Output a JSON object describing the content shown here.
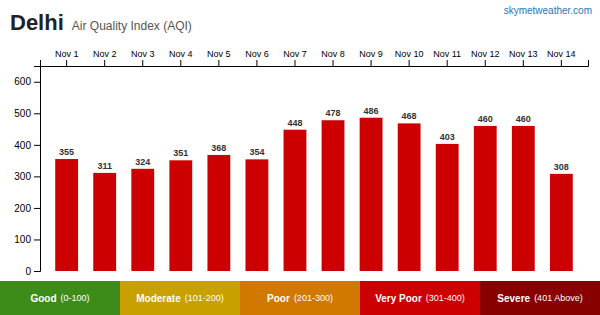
{
  "chart_data": {
    "type": "bar",
    "title": "Delhi",
    "subtitle": "Air Quality Index (AQI)",
    "source": "skymetweather.com",
    "categories": [
      "Nov 1",
      "Nov 2",
      "Nov 3",
      "Nov 4",
      "Nov 5",
      "Nov 6",
      "Nov 7",
      "Nov 8",
      "Nov 9",
      "Nov 10",
      "Nov 11",
      "Nov 12",
      "Nov 13",
      "Nov 14"
    ],
    "values": [
      355,
      311,
      324,
      351,
      368,
      354,
      448,
      478,
      486,
      468,
      403,
      460,
      460,
      308
    ],
    "color": "#cc0000",
    "ylim": [
      0,
      650
    ],
    "yticks": [
      0,
      100,
      200,
      300,
      400,
      500,
      600
    ],
    "grid": false,
    "data_labels": true,
    "legend_bands": [
      {
        "label": "Good",
        "sub": "(0-100)",
        "color": "#3d8c1a"
      },
      {
        "label": "Moderate",
        "sub": "(101-200)",
        "color": "#c8a000"
      },
      {
        "label": "Poor",
        "sub": "(201-300)",
        "color": "#d07800"
      },
      {
        "label": "Very Poor",
        "sub": "(301-400)",
        "color": "#cc0000"
      },
      {
        "label": "Severe",
        "sub": "(401 Above)",
        "color": "#880000"
      }
    ]
  }
}
